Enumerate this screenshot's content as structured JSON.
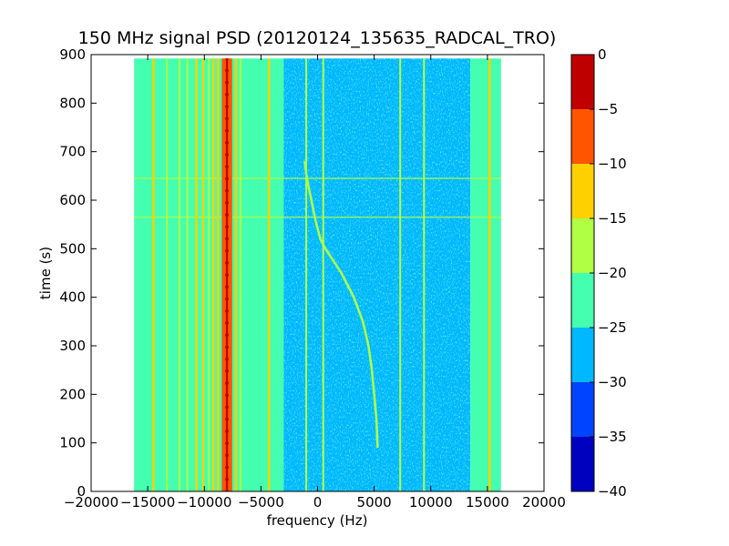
{
  "chart_data": {
    "type": "heatmap",
    "title": "150 MHz signal PSD (20120124_135635_RADCAL_TRO)",
    "xlabel": "frequency (Hz)",
    "ylabel": "time (s)",
    "xlim": [
      -20000,
      20000
    ],
    "ylim": [
      0,
      900
    ],
    "xticks": [
      -20000,
      -15000,
      -10000,
      -5000,
      0,
      5000,
      10000,
      15000,
      20000
    ],
    "xtick_labels": [
      "−20000",
      "−15000",
      "−10000",
      "−5000",
      "0",
      "5000",
      "10000",
      "15000",
      "20000"
    ],
    "yticks": [
      0,
      100,
      200,
      300,
      400,
      500,
      600,
      700,
      800,
      900
    ],
    "ytick_labels": [
      "0",
      "100",
      "200",
      "300",
      "400",
      "500",
      "600",
      "700",
      "800",
      "900"
    ],
    "data_extent": {
      "freq": [
        -16200,
        16200
      ],
      "time": [
        0,
        892
      ]
    },
    "colorbar": {
      "levels": [
        -40,
        -35,
        -30,
        -25,
        -20,
        -15,
        -10,
        -5,
        0
      ],
      "tick_labels": [
        "−40",
        "−35",
        "−30",
        "−25",
        "−20",
        "−15",
        "−10",
        "−5",
        "0"
      ],
      "colors": [
        "#0000c0",
        "#0044ff",
        "#00b8ff",
        "#44ffb0",
        "#b0ff44",
        "#ffd000",
        "#ff5500",
        "#c00000"
      ]
    },
    "regions": [
      {
        "from": -16200,
        "to": -3000,
        "level": "-25 to -20"
      },
      {
        "from": -3000,
        "to": 13500,
        "level": "-30 to -25"
      },
      {
        "from": 13500,
        "to": 16200,
        "level": "-25 to -20"
      }
    ],
    "steady_tones": [
      {
        "freq": -14500,
        "level": "-15 to -10"
      },
      {
        "freq": -13300,
        "level": "-20 to -15"
      },
      {
        "freq": -12200,
        "level": "-20 to -15"
      },
      {
        "freq": -11500,
        "level": "-20 to -15"
      },
      {
        "freq": -10700,
        "level": "-15 to -10"
      },
      {
        "freq": -10100,
        "level": "-15 to -10"
      },
      {
        "freq": -9600,
        "level": "-20 to -15"
      },
      {
        "freq": -9200,
        "level": "-15 to -10"
      },
      {
        "freq": -8800,
        "level": "-15 to -10"
      },
      {
        "freq": -8300,
        "level": "-10 to -5"
      },
      {
        "freq": -8000,
        "level": "0 to -5"
      },
      {
        "freq": -7700,
        "level": "-10 to -5"
      },
      {
        "freq": -7200,
        "level": "-15 to -10"
      },
      {
        "freq": -6800,
        "level": "-20 to -15"
      },
      {
        "freq": -4300,
        "level": "-15 to -10"
      },
      {
        "freq": -1000,
        "level": "-20 to -15"
      },
      {
        "freq": 500,
        "level": "-20 to -15"
      },
      {
        "freq": 7300,
        "level": "-20 to -15"
      },
      {
        "freq": 9400,
        "level": "-20 to -15"
      },
      {
        "freq": 15200,
        "level": "-15 to -10"
      }
    ],
    "drifting_tone": {
      "level": "-20 to -15",
      "time": [
        680,
        640,
        600,
        560,
        520,
        500,
        450,
        400,
        350,
        300,
        250,
        200,
        150,
        90
      ],
      "freq": [
        -1150,
        -900,
        -550,
        -200,
        250,
        700,
        2100,
        3200,
        4000,
        4500,
        4800,
        5000,
        5200,
        5300
      ]
    },
    "time_disturbances": [
      565,
      645
    ]
  }
}
